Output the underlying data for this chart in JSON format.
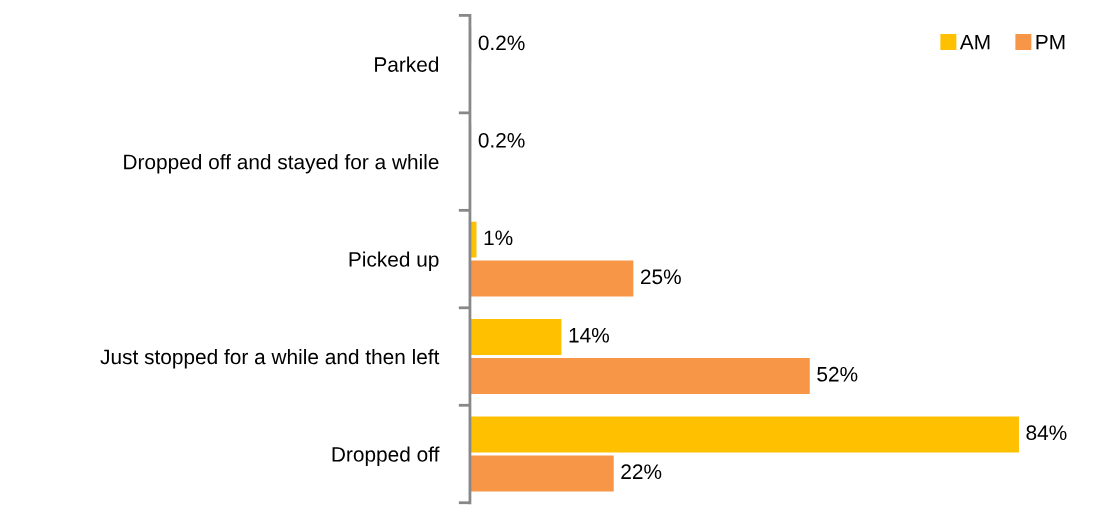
{
  "chart_data": {
    "type": "bar",
    "orientation": "horizontal",
    "categories": [
      "Parked",
      "Dropped off and stayed for a while",
      "Picked up",
      "Just stopped for a while and then left",
      "Dropped off"
    ],
    "series": [
      {
        "name": "AM",
        "color": "#ffc000",
        "values": [
          0.2,
          0.2,
          1,
          14,
          84
        ],
        "value_labels": [
          "0.2%",
          "0.2%",
          "1%",
          "14%",
          "84%"
        ]
      },
      {
        "name": "PM",
        "color": "#f79646",
        "values": [
          null,
          null,
          25,
          52,
          22
        ],
        "value_labels": [
          null,
          null,
          "25%",
          "52%",
          "22%"
        ]
      }
    ],
    "legend": "top right",
    "grid": false
  }
}
